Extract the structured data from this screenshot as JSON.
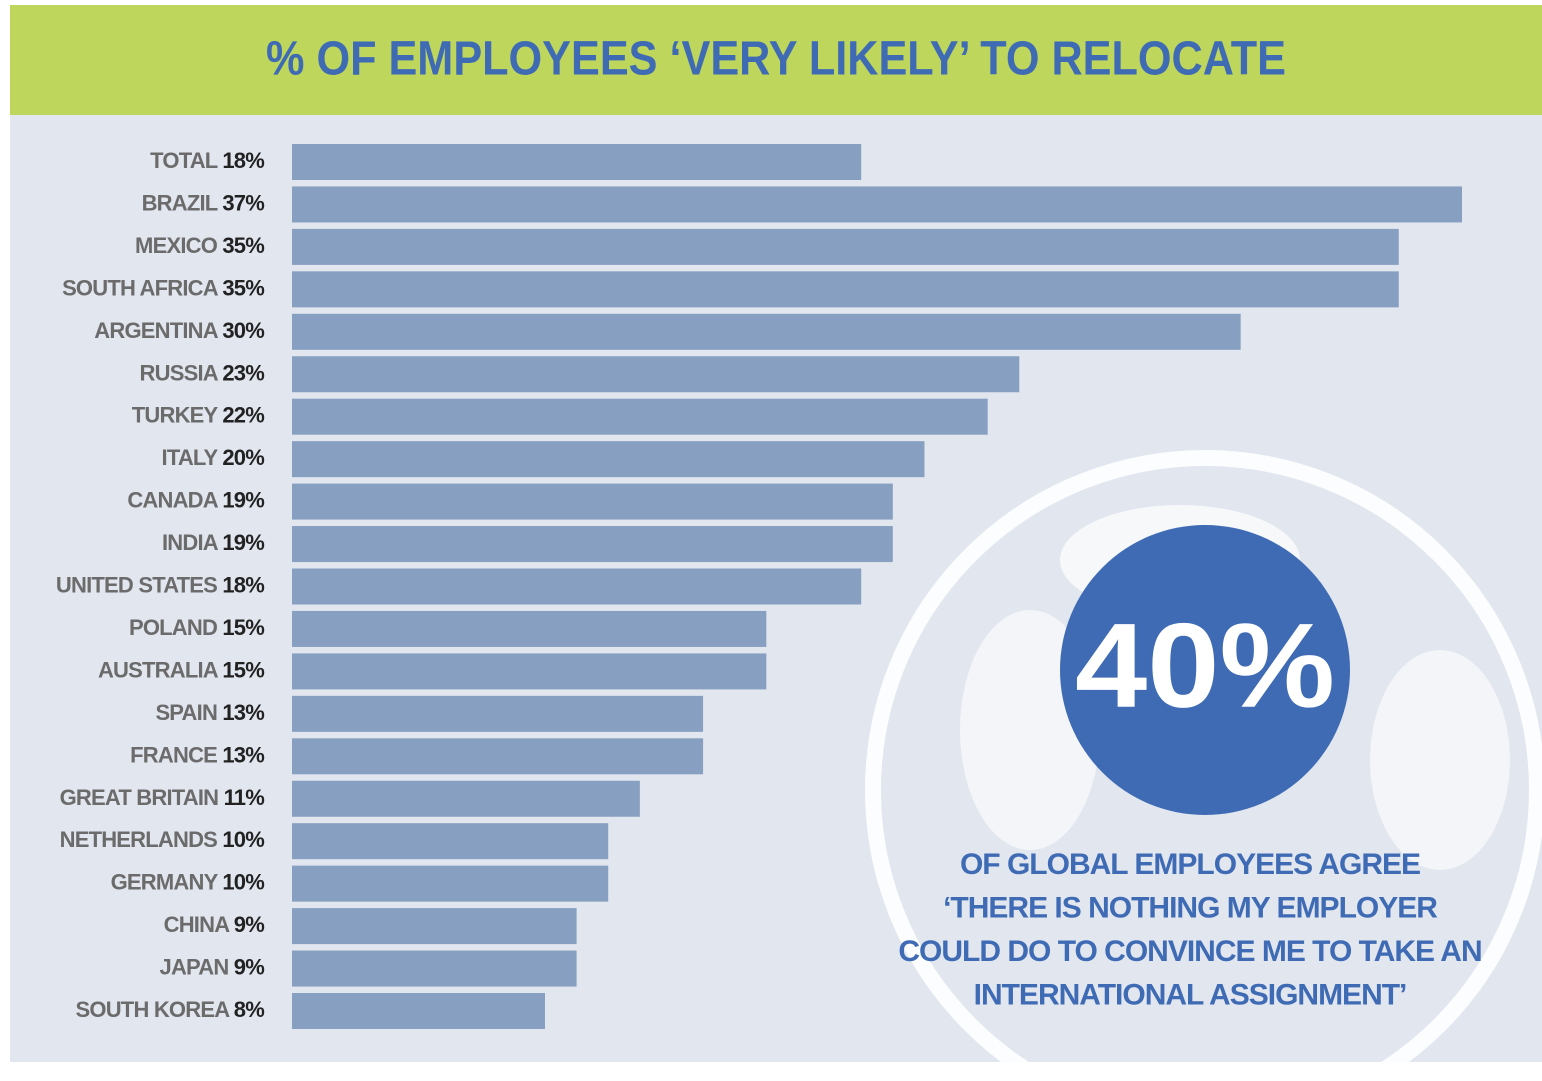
{
  "chart_data": {
    "type": "bar",
    "orientation": "horizontal",
    "title": "% OF EMPLOYEES ‘VERY LIKELY’ TO RELOCATE",
    "categories": [
      "TOTAL",
      "BRAZIL",
      "MEXICO",
      "SOUTH AFRICA",
      "ARGENTINA",
      "RUSSIA",
      "TURKEY",
      "ITALY",
      "CANADA",
      "INDIA",
      "UNITED STATES",
      "POLAND",
      "AUSTRALIA",
      "SPAIN",
      "FRANCE",
      "GREAT BRITAIN",
      "NETHERLANDS",
      "GERMANY",
      "CHINA",
      "JAPAN",
      "SOUTH KOREA"
    ],
    "values": [
      18,
      37,
      35,
      35,
      30,
      23,
      22,
      20,
      19,
      19,
      18,
      15,
      15,
      13,
      13,
      11,
      10,
      10,
      9,
      9,
      8
    ],
    "value_labels": [
      "18%",
      "37%",
      "35%",
      "35%",
      "30%",
      "23%",
      "22%",
      "20%",
      "19%",
      "19%",
      "18%",
      "15%",
      "15%",
      "13%",
      "13%",
      "11%",
      "10%",
      "10%",
      "9%",
      "9%",
      "8%"
    ],
    "color": "#879fc0",
    "annotation": {
      "value": 40,
      "label": "40%",
      "text": [
        "OF GLOBAL EMPLOYEES AGREE",
        "‘THERE IS NOTHING MY EMPLOYER",
        "COULD DO TO CONVINCE ME TO TAKE AN",
        "INTERNATIONAL ASSIGNMENT’"
      ]
    }
  }
}
